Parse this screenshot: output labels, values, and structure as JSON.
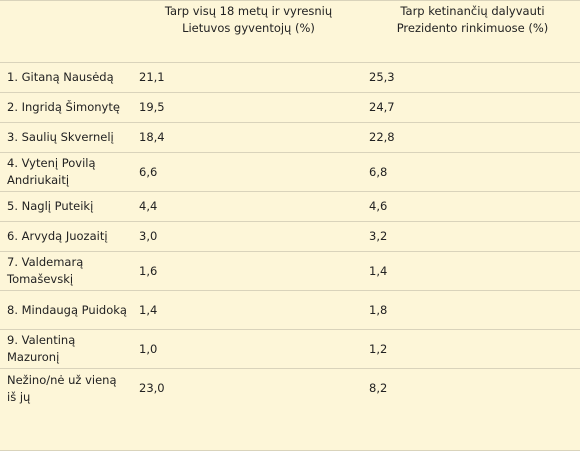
{
  "headers": {
    "col1": "",
    "col2": "Tarp visų 18 metų ir vyresnių Lietuvos gyventojų (%)",
    "col3": "Tarp ketinančių dalyvauti Prezidento rinkimuose (%)"
  },
  "rows": [
    {
      "name": "1. Gitaną Nausėdą",
      "all": "21,1",
      "voters": "25,3"
    },
    {
      "name": "2. Ingridą Šimonytę",
      "all": "19,5",
      "voters": "24,7"
    },
    {
      "name": "3. Saulių Skvernelį",
      "all": "18,4",
      "voters": "22,8"
    },
    {
      "name": "4. Vytenį Povilą Andriukaitį",
      "all": "6,6",
      "voters": "6,8"
    },
    {
      "name": "5. Naglį Puteikį",
      "all": "4,4",
      "voters": "4,6"
    },
    {
      "name": "6. Arvydą Juozaitį",
      "all": "3,0",
      "voters": "3,2"
    },
    {
      "name": "7. Valdemarą Tomaševskį",
      "all": "1,6",
      "voters": "1,4"
    },
    {
      "name": "8. Mindaugą Puidoką",
      "all": "1,4",
      "voters": "1,8"
    },
    {
      "name": "9. Valentiną Mazuronį",
      "all": "1,0",
      "voters": "1,2"
    },
    {
      "name": "Nežino/nė už vieną iš jų",
      "all": "23,0",
      "voters": "8,2"
    }
  ]
}
